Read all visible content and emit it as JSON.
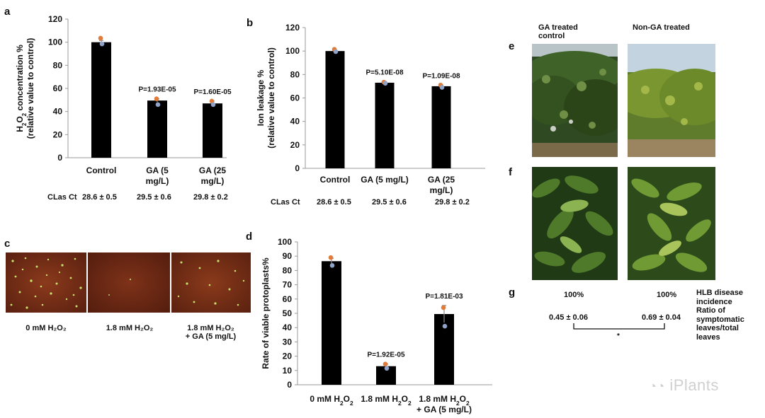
{
  "panels": {
    "a": "a",
    "b": "b",
    "c": "c",
    "d": "d",
    "e": "e",
    "f": "f",
    "g": "g"
  },
  "chart_data": [
    {
      "id": "a",
      "type": "bar",
      "categories": [
        "Control",
        "GA (5\nmg/L)",
        "GA (25\nmg/L)"
      ],
      "values": [
        100,
        49.5,
        47
      ],
      "errors": [
        1.5,
        1.5,
        2
      ],
      "points": [
        [
          103.5,
          98.5
        ],
        [
          51,
          46
        ],
        [
          49,
          46
        ]
      ],
      "annotations": [
        "",
        "P=1.93E-05",
        "P=1.60E-05"
      ],
      "ylabel": "H2O2 concentration % (relative value to control)",
      "ylim": [
        0,
        120
      ],
      "yticks": [
        0,
        20,
        40,
        60,
        80,
        100,
        120
      ]
    },
    {
      "id": "b",
      "type": "bar",
      "categories": [
        "Control",
        "GA (5 mg/L)",
        "GA (25\nmg/L)"
      ],
      "values": [
        100,
        73,
        70
      ],
      "errors": [
        1,
        1,
        1
      ],
      "points": [
        [
          101.5,
          99.5
        ],
        [
          73.5,
          72.5
        ],
        [
          71,
          69
        ]
      ],
      "annotations": [
        "",
        "P=5.10E-08",
        "P=1.09E-08"
      ],
      "ylabel": "Ion leakage % (relative value to control)",
      "ylim": [
        0,
        120
      ],
      "yticks": [
        0,
        20,
        40,
        60,
        80,
        100,
        120
      ]
    },
    {
      "id": "d",
      "type": "bar",
      "categories": [
        "0 mM H2O2",
        "1.8 mM H2O2",
        "1.8 mM H2O2\n+ GA (5 mg/L)"
      ],
      "values": [
        86.5,
        13,
        49.5
      ],
      "errors": [
        2,
        1.5,
        6
      ],
      "points": [
        [
          89,
          83.5
        ],
        [
          14.5,
          11.5
        ],
        [
          54,
          41
        ]
      ],
      "annotations": [
        "",
        "P=1.92E-05",
        "P=1.81E-03"
      ],
      "ylabel": "Rate of viable protoplasts%",
      "ylim": [
        0,
        100
      ],
      "yticks": [
        0,
        10,
        20,
        30,
        40,
        50,
        60,
        70,
        80,
        90,
        100
      ]
    }
  ],
  "clas_ct": {
    "label": "CLas Ct",
    "values": [
      "28.6 ± 0.5",
      "29.5 ± 0.6",
      "29.8 ± 0.2"
    ]
  },
  "panel_c": {
    "captions": [
      "0 mM H₂O₂",
      "1.8 mM H₂O₂",
      "1.8 mM H₂O₂\n+ GA (5 mg/L)"
    ]
  },
  "panel_e": {
    "col1": "GA treated\ncontrol",
    "col2": "Non-GA treated"
  },
  "panel_g": {
    "incidence": [
      "100%",
      "100%"
    ],
    "ratio": [
      "0.45 ± 0.06",
      "0.69 ± 0.04"
    ],
    "sig": "*",
    "legend": [
      "HLB disease",
      "incidence",
      "Ratio of",
      "symptomatic",
      "leaves/total",
      "leaves"
    ]
  },
  "watermark": "iPlants",
  "colors": {
    "bar": "#000000",
    "dot_orange": "#e07b39",
    "dot_blue": "#8ea3c7",
    "error": "#888888"
  }
}
